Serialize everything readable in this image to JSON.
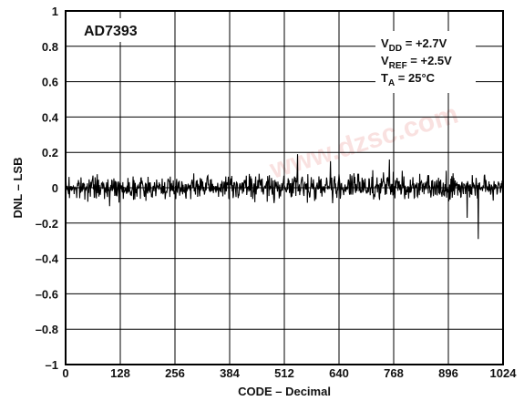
{
  "chart_data": {
    "type": "line",
    "title": "AD7393",
    "xlabel": "CODE – Decimal",
    "ylabel": "DNL – LSB",
    "xlim": [
      0,
      1024
    ],
    "ylim": [
      -1,
      1
    ],
    "x_ticks": [
      "0",
      "128",
      "256",
      "384",
      "512",
      "640",
      "768",
      "896",
      "1024"
    ],
    "y_ticks": [
      "1",
      "0.8",
      "0.6",
      "0.4",
      "0.2",
      "0",
      "–0.2",
      "–0.4",
      "–0.6",
      "–0.8",
      "–1"
    ],
    "grid": true,
    "conditions": [
      {
        "main": "V",
        "sub": "DD",
        "rest": " = +2.7V"
      },
      {
        "main": "V",
        "sub": "REF",
        "rest": " = +2.5V"
      },
      {
        "main": "T",
        "sub": "A",
        "rest": " = 25°C"
      }
    ],
    "series": [
      {
        "color": "#000000",
        "noise_envelope": [
          {
            "x": 0,
            "min": -0.09,
            "max": 0.09
          },
          {
            "x": 256,
            "min": -0.09,
            "max": 0.09
          },
          {
            "x": 512,
            "min": -0.1,
            "max": 0.11
          },
          {
            "x": 768,
            "min": -0.1,
            "max": 0.11
          },
          {
            "x": 1024,
            "min": -0.09,
            "max": 0.1
          }
        ],
        "spikes": [
          {
            "x": 966,
            "y": -0.29
          },
          {
            "x": 543,
            "y": 0.19
          },
          {
            "x": 620,
            "y": 0.15
          },
          {
            "x": 758,
            "y": 0.16
          },
          {
            "x": 940,
            "y": -0.17
          }
        ]
      }
    ],
    "watermark": "www.dzsc.com"
  }
}
